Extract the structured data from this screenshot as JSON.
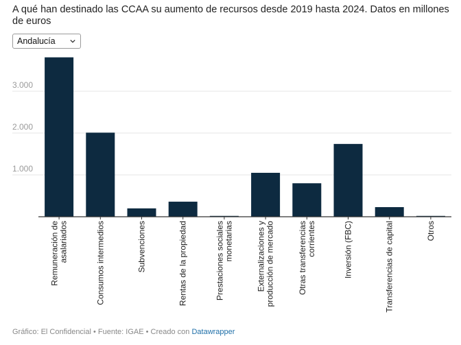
{
  "title": "A qué han destinado las CCAA su aumento de recursos desde 2019 hasta 2024. Datos en millones de euros",
  "selector": {
    "value": "Andalucía",
    "icon": "chevron-down-icon"
  },
  "footer": {
    "text": "Gráfico: El Confidencial • Fuente: IGAE • Creado con ",
    "link": "Datawrapper"
  },
  "colors": {
    "bar": "#0d2a40",
    "grid": "#e4e4e4",
    "axis": "#333333",
    "tick_label": "#9a9a9a",
    "category_label": "#222222"
  },
  "chart_data": {
    "type": "bar",
    "categories": [
      [
        "Remuneración de",
        "asalariados"
      ],
      [
        "Consumos intermedios"
      ],
      [
        "Subvenciones"
      ],
      [
        "Rentas de la propiedad"
      ],
      [
        "Prestaciones sociales",
        "monetarias"
      ],
      [
        "Externalizaciones y",
        "producción de mercado"
      ],
      [
        "Otras transferencias",
        "corrientes"
      ],
      [
        "Inversión (FBC)"
      ],
      [
        "Transferencias de capital"
      ],
      [
        "Otros"
      ]
    ],
    "values": [
      3810,
      2010,
      200,
      360,
      20,
      1050,
      800,
      1740,
      230,
      20
    ],
    "ylim": [
      0,
      4000
    ],
    "yticks": [
      1000,
      2000,
      3000
    ],
    "ytick_labels": [
      "1.000",
      "2.000",
      "3.000"
    ],
    "xlabel": "",
    "ylabel": "",
    "grid": true
  }
}
